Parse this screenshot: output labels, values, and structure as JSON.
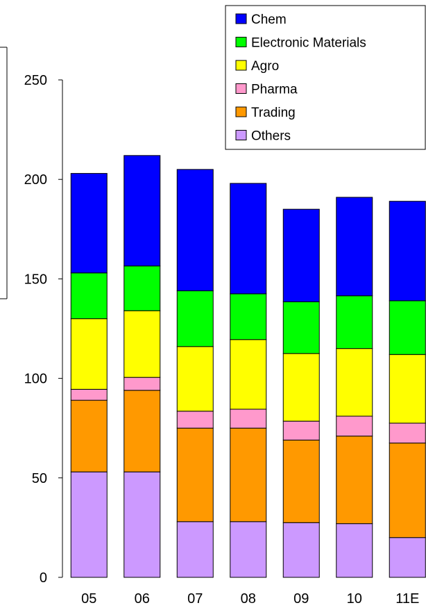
{
  "chart_data": {
    "type": "bar",
    "stacked": true,
    "categories": [
      "05",
      "06",
      "07",
      "08",
      "09",
      "10",
      "11E"
    ],
    "ylim": [
      0,
      250
    ],
    "yticks": [
      0,
      50,
      100,
      150,
      200,
      250
    ],
    "legend_position": "top-right",
    "series": [
      {
        "name": "Others",
        "color": "#cc99ff",
        "values": [
          53,
          53,
          28,
          28,
          27.5,
          27,
          20
        ]
      },
      {
        "name": "Trading",
        "color": "#ff9900",
        "values": [
          36,
          41,
          47,
          47,
          41.5,
          44,
          47.5
        ]
      },
      {
        "name": "Pharma",
        "color": "#ff99cc",
        "values": [
          5.5,
          6.5,
          8.5,
          9.5,
          9.5,
          10,
          10
        ]
      },
      {
        "name": "Agro",
        "color": "#ffff00",
        "values": [
          35.5,
          33.5,
          32.5,
          35,
          34,
          34,
          34.5
        ]
      },
      {
        "name": "Electronic Materials",
        "color": "#00ff00",
        "values": [
          23,
          22.5,
          28,
          23,
          26,
          26.5,
          27
        ]
      },
      {
        "name": "Chem",
        "color": "#0000ff",
        "values": [
          50,
          55.5,
          61,
          55.5,
          46.5,
          49.5,
          50
        ]
      }
    ],
    "legend_order": [
      "Chem",
      "Electronic Materials",
      "Agro",
      "Pharma",
      "Trading",
      "Others"
    ]
  }
}
